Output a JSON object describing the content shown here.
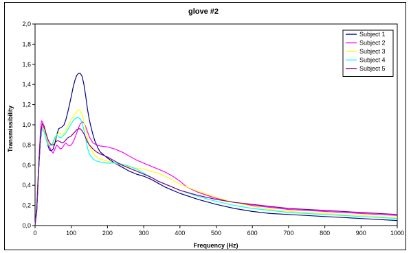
{
  "chart_data": {
    "type": "line",
    "title": "glove #2",
    "xlabel": "Frequency (Hz)",
    "ylabel": "Transmissibility",
    "xlim": [
      0,
      1000
    ],
    "ylim": [
      0,
      2.0
    ],
    "x_ticks": [
      "0",
      "100",
      "200",
      "300",
      "400",
      "500",
      "600",
      "700",
      "800",
      "900",
      "1000"
    ],
    "y_ticks": [
      "0,0",
      "0,2",
      "0,4",
      "0,6",
      "0,8",
      "1,0",
      "1,2",
      "1,4",
      "1,6",
      "1,8",
      "2,0"
    ],
    "grid": false,
    "legend_position": "top-right",
    "series": [
      {
        "name": "Subject 1",
        "color": "#000080",
        "points": [
          [
            0,
            0
          ],
          [
            5,
            0.15
          ],
          [
            10,
            0.55
          ],
          [
            15,
            0.85
          ],
          [
            20,
            0.98
          ],
          [
            25,
            0.96
          ],
          [
            30,
            0.88
          ],
          [
            35,
            0.8
          ],
          [
            40,
            0.75
          ],
          [
            45,
            0.74
          ],
          [
            50,
            0.76
          ],
          [
            55,
            0.82
          ],
          [
            60,
            0.9
          ],
          [
            65,
            0.96
          ],
          [
            70,
            0.97
          ],
          [
            75,
            0.98
          ],
          [
            80,
            1.0
          ],
          [
            85,
            1.05
          ],
          [
            90,
            1.12
          ],
          [
            95,
            1.2
          ],
          [
            100,
            1.28
          ],
          [
            105,
            1.37
          ],
          [
            110,
            1.44
          ],
          [
            115,
            1.49
          ],
          [
            120,
            1.51
          ],
          [
            125,
            1.51
          ],
          [
            130,
            1.48
          ],
          [
            135,
            1.4
          ],
          [
            140,
            1.28
          ],
          [
            145,
            1.15
          ],
          [
            150,
            1.05
          ],
          [
            155,
            0.97
          ],
          [
            160,
            0.9
          ],
          [
            165,
            0.84
          ],
          [
            170,
            0.8
          ],
          [
            175,
            0.76
          ],
          [
            180,
            0.73
          ],
          [
            190,
            0.7
          ],
          [
            200,
            0.67
          ],
          [
            220,
            0.62
          ],
          [
            240,
            0.58
          ],
          [
            260,
            0.54
          ],
          [
            280,
            0.51
          ],
          [
            300,
            0.49
          ],
          [
            320,
            0.46
          ],
          [
            340,
            0.42
          ],
          [
            360,
            0.38
          ],
          [
            380,
            0.35
          ],
          [
            400,
            0.32
          ],
          [
            450,
            0.26
          ],
          [
            500,
            0.21
          ],
          [
            550,
            0.17
          ],
          [
            600,
            0.14
          ],
          [
            650,
            0.12
          ],
          [
            700,
            0.11
          ],
          [
            750,
            0.1
          ],
          [
            800,
            0.09
          ],
          [
            850,
            0.08
          ],
          [
            900,
            0.07
          ],
          [
            950,
            0.06
          ],
          [
            1000,
            0.05
          ]
        ]
      },
      {
        "name": "Subject 2",
        "color": "#FF00FF",
        "points": [
          [
            0,
            0
          ],
          [
            5,
            0.2
          ],
          [
            10,
            0.6
          ],
          [
            15,
            0.95
          ],
          [
            18,
            1.04
          ],
          [
            22,
            1.02
          ],
          [
            25,
            0.95
          ],
          [
            30,
            0.88
          ],
          [
            35,
            0.83
          ],
          [
            40,
            0.78
          ],
          [
            45,
            0.74
          ],
          [
            50,
            0.72
          ],
          [
            55,
            0.76
          ],
          [
            60,
            0.8
          ],
          [
            65,
            0.78
          ],
          [
            70,
            0.76
          ],
          [
            75,
            0.77
          ],
          [
            80,
            0.8
          ],
          [
            85,
            0.82
          ],
          [
            90,
            0.8
          ],
          [
            95,
            0.79
          ],
          [
            100,
            0.8
          ],
          [
            105,
            0.83
          ],
          [
            110,
            0.87
          ],
          [
            115,
            0.92
          ],
          [
            120,
            0.97
          ],
          [
            125,
            1.01
          ],
          [
            130,
            1.03
          ],
          [
            135,
            1.02
          ],
          [
            140,
            0.98
          ],
          [
            145,
            0.93
          ],
          [
            150,
            0.88
          ],
          [
            160,
            0.82
          ],
          [
            170,
            0.8
          ],
          [
            180,
            0.79
          ],
          [
            200,
            0.78
          ],
          [
            220,
            0.76
          ],
          [
            240,
            0.73
          ],
          [
            260,
            0.69
          ],
          [
            280,
            0.65
          ],
          [
            300,
            0.62
          ],
          [
            320,
            0.59
          ],
          [
            340,
            0.56
          ],
          [
            360,
            0.53
          ],
          [
            380,
            0.49
          ],
          [
            400,
            0.44
          ],
          [
            420,
            0.38
          ],
          [
            450,
            0.33
          ],
          [
            500,
            0.27
          ],
          [
            550,
            0.23
          ],
          [
            600,
            0.2
          ],
          [
            650,
            0.18
          ],
          [
            700,
            0.16
          ],
          [
            750,
            0.15
          ],
          [
            800,
            0.14
          ],
          [
            850,
            0.13
          ],
          [
            900,
            0.12
          ],
          [
            950,
            0.11
          ],
          [
            1000,
            0.1
          ]
        ]
      },
      {
        "name": "Subject 3",
        "color": "#FFFF00",
        "points": [
          [
            0,
            0
          ],
          [
            5,
            0.2
          ],
          [
            10,
            0.6
          ],
          [
            15,
            0.9
          ],
          [
            20,
            0.98
          ],
          [
            25,
            0.95
          ],
          [
            30,
            0.88
          ],
          [
            35,
            0.82
          ],
          [
            40,
            0.8
          ],
          [
            45,
            0.8
          ],
          [
            50,
            0.82
          ],
          [
            55,
            0.86
          ],
          [
            60,
            0.9
          ],
          [
            65,
            0.92
          ],
          [
            70,
            0.91
          ],
          [
            75,
            0.9
          ],
          [
            80,
            0.92
          ],
          [
            85,
            0.95
          ],
          [
            90,
            0.98
          ],
          [
            95,
            1.02
          ],
          [
            100,
            1.05
          ],
          [
            105,
            1.08
          ],
          [
            110,
            1.1
          ],
          [
            115,
            1.13
          ],
          [
            120,
            1.15
          ],
          [
            125,
            1.14
          ],
          [
            130,
            1.1
          ],
          [
            135,
            1.03
          ],
          [
            140,
            0.95
          ],
          [
            145,
            0.86
          ],
          [
            150,
            0.79
          ],
          [
            160,
            0.72
          ],
          [
            170,
            0.68
          ],
          [
            180,
            0.66
          ],
          [
            200,
            0.64
          ],
          [
            220,
            0.62
          ],
          [
            240,
            0.6
          ],
          [
            260,
            0.58
          ],
          [
            280,
            0.57
          ],
          [
            300,
            0.56
          ],
          [
            320,
            0.54
          ],
          [
            340,
            0.52
          ],
          [
            360,
            0.49
          ],
          [
            380,
            0.45
          ],
          [
            400,
            0.41
          ],
          [
            450,
            0.34
          ],
          [
            500,
            0.28
          ],
          [
            550,
            0.23
          ],
          [
            600,
            0.19
          ],
          [
            650,
            0.16
          ],
          [
            700,
            0.14
          ],
          [
            750,
            0.13
          ],
          [
            800,
            0.12
          ],
          [
            850,
            0.11
          ],
          [
            900,
            0.1
          ],
          [
            950,
            0.09
          ],
          [
            1000,
            0.08
          ]
        ]
      },
      {
        "name": "Subject 4",
        "color": "#00FFFF",
        "points": [
          [
            0,
            0
          ],
          [
            5,
            0.2
          ],
          [
            10,
            0.6
          ],
          [
            15,
            0.88
          ],
          [
            20,
            0.96
          ],
          [
            25,
            0.93
          ],
          [
            30,
            0.86
          ],
          [
            35,
            0.8
          ],
          [
            40,
            0.79
          ],
          [
            45,
            0.8
          ],
          [
            50,
            0.83
          ],
          [
            55,
            0.88
          ],
          [
            60,
            0.9
          ],
          [
            65,
            0.88
          ],
          [
            70,
            0.87
          ],
          [
            75,
            0.88
          ],
          [
            80,
            0.9
          ],
          [
            85,
            0.92
          ],
          [
            90,
            0.95
          ],
          [
            95,
            0.98
          ],
          [
            100,
            1.01
          ],
          [
            105,
            1.04
          ],
          [
            110,
            1.06
          ],
          [
            115,
            1.07
          ],
          [
            120,
            1.07
          ],
          [
            125,
            1.06
          ],
          [
            130,
            1.02
          ],
          [
            135,
            0.95
          ],
          [
            140,
            0.86
          ],
          [
            145,
            0.77
          ],
          [
            150,
            0.71
          ],
          [
            160,
            0.66
          ],
          [
            170,
            0.64
          ],
          [
            180,
            0.63
          ],
          [
            200,
            0.62
          ],
          [
            220,
            0.62
          ],
          [
            240,
            0.61
          ],
          [
            260,
            0.59
          ],
          [
            280,
            0.56
          ],
          [
            300,
            0.52
          ],
          [
            320,
            0.48
          ],
          [
            340,
            0.44
          ],
          [
            360,
            0.41
          ],
          [
            380,
            0.38
          ],
          [
            400,
            0.35
          ],
          [
            450,
            0.29
          ],
          [
            500,
            0.24
          ],
          [
            550,
            0.2
          ],
          [
            600,
            0.17
          ],
          [
            650,
            0.15
          ],
          [
            700,
            0.13
          ],
          [
            750,
            0.12
          ],
          [
            800,
            0.11
          ],
          [
            850,
            0.1
          ],
          [
            900,
            0.09
          ],
          [
            950,
            0.08
          ],
          [
            1000,
            0.07
          ]
        ]
      },
      {
        "name": "Subject 5",
        "color": "#800080",
        "points": [
          [
            0,
            0
          ],
          [
            5,
            0.2
          ],
          [
            10,
            0.6
          ],
          [
            15,
            0.9
          ],
          [
            20,
            1.01
          ],
          [
            25,
            0.99
          ],
          [
            30,
            0.92
          ],
          [
            35,
            0.86
          ],
          [
            40,
            0.82
          ],
          [
            45,
            0.8
          ],
          [
            50,
            0.8
          ],
          [
            55,
            0.82
          ],
          [
            60,
            0.84
          ],
          [
            65,
            0.84
          ],
          [
            70,
            0.83
          ],
          [
            75,
            0.82
          ],
          [
            80,
            0.83
          ],
          [
            85,
            0.85
          ],
          [
            90,
            0.87
          ],
          [
            95,
            0.88
          ],
          [
            100,
            0.89
          ],
          [
            105,
            0.91
          ],
          [
            110,
            0.93
          ],
          [
            115,
            0.95
          ],
          [
            120,
            0.96
          ],
          [
            125,
            0.96
          ],
          [
            130,
            0.94
          ],
          [
            135,
            0.91
          ],
          [
            140,
            0.87
          ],
          [
            145,
            0.83
          ],
          [
            150,
            0.8
          ],
          [
            160,
            0.76
          ],
          [
            170,
            0.73
          ],
          [
            180,
            0.71
          ],
          [
            200,
            0.68
          ],
          [
            220,
            0.64
          ],
          [
            240,
            0.6
          ],
          [
            260,
            0.57
          ],
          [
            280,
            0.54
          ],
          [
            300,
            0.51
          ],
          [
            320,
            0.48
          ],
          [
            340,
            0.44
          ],
          [
            360,
            0.41
          ],
          [
            380,
            0.38
          ],
          [
            400,
            0.35
          ],
          [
            450,
            0.3
          ],
          [
            500,
            0.26
          ],
          [
            550,
            0.23
          ],
          [
            600,
            0.21
          ],
          [
            650,
            0.19
          ],
          [
            700,
            0.17
          ],
          [
            750,
            0.16
          ],
          [
            800,
            0.15
          ],
          [
            850,
            0.14
          ],
          [
            900,
            0.13
          ],
          [
            950,
            0.12
          ],
          [
            1000,
            0.11
          ]
        ]
      }
    ]
  }
}
